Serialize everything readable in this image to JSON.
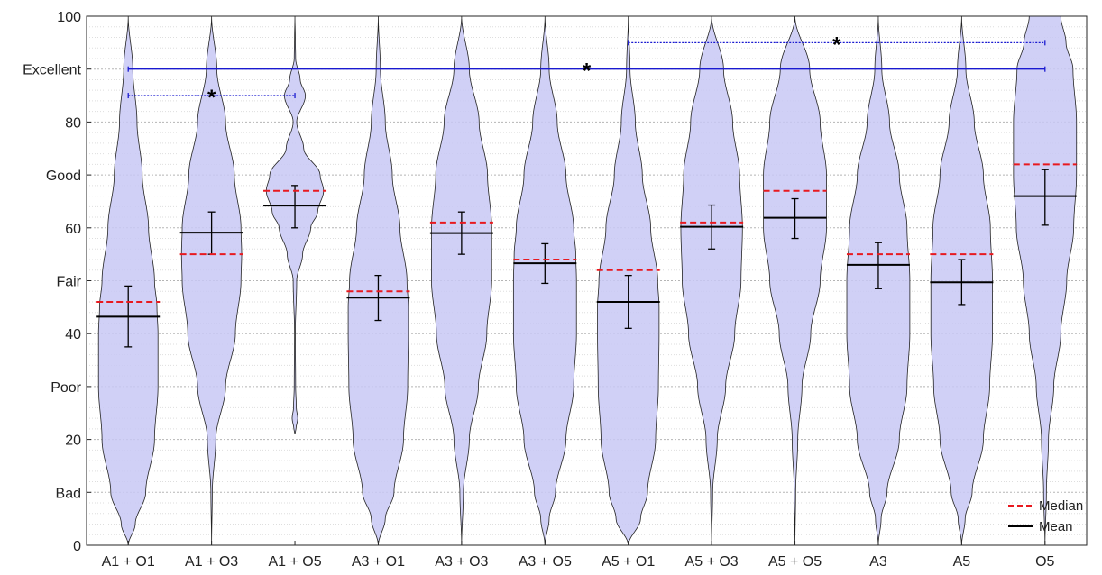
{
  "chart_data": {
    "type": "violin",
    "categories": [
      "A1 + O1",
      "A1 + O3",
      "A1 + O5",
      "A3 + O1",
      "A3 + O3",
      "A3 + O5",
      "A5 + O1",
      "A5 + O3",
      "A5 + O5",
      "A3",
      "A5",
      "O5"
    ],
    "ylim": [
      0,
      100
    ],
    "y_ticks": [
      {
        "value": 0,
        "label": "0"
      },
      {
        "value": 10,
        "label": "Bad"
      },
      {
        "value": 20,
        "label": "20"
      },
      {
        "value": 30,
        "label": "Poor"
      },
      {
        "value": 40,
        "label": "40"
      },
      {
        "value": 50,
        "label": "Fair"
      },
      {
        "value": 60,
        "label": "60"
      },
      {
        "value": 70,
        "label": "Good"
      },
      {
        "value": 80,
        "label": "80"
      },
      {
        "value": 90,
        "label": "Excellent"
      },
      {
        "value": 100,
        "label": "100"
      }
    ],
    "grid": true,
    "minor_grid_step": 2,
    "legend_position": "bottom-right",
    "legend": [
      {
        "label": "Median",
        "style": "dashed",
        "color": "#e8191f"
      },
      {
        "label": "Mean",
        "style": "solid",
        "color": "#000000"
      }
    ],
    "violin_color": "#c8c8f5",
    "violin_edge_color": "#222222",
    "series": [
      {
        "category": "A1 + O1",
        "median": 46,
        "mean": 43.2,
        "ci": [
          37.5,
          49
        ],
        "profile_y": [
          0,
          4,
          10,
          20,
          30,
          40,
          45,
          50,
          60,
          70,
          80,
          90,
          100
        ],
        "profile_w": [
          0,
          0.2,
          0.5,
          0.75,
          0.85,
          0.85,
          0.82,
          0.75,
          0.58,
          0.4,
          0.25,
          0.13,
          0
        ]
      },
      {
        "category": "A1 + O3",
        "median": 55,
        "mean": 59.1,
        "ci": [
          55,
          63
        ],
        "profile_y": [
          0,
          10,
          20,
          30,
          40,
          50,
          55,
          60,
          70,
          80,
          90,
          100
        ],
        "profile_w": [
          0,
          0.02,
          0.12,
          0.4,
          0.68,
          0.84,
          0.86,
          0.84,
          0.65,
          0.4,
          0.15,
          0
        ]
      },
      {
        "category": "A1 + O5",
        "median": 67,
        "mean": 64.2,
        "ci": [
          60,
          68
        ],
        "profile_y": [
          21,
          22,
          24,
          26,
          30,
          40,
          50,
          55,
          60,
          63,
          67,
          70,
          75,
          80,
          85,
          88,
          92,
          96,
          100
        ],
        "profile_w": [
          0,
          0.03,
          0.08,
          0.04,
          0.02,
          0.01,
          0.05,
          0.22,
          0.45,
          0.65,
          0.82,
          0.72,
          0.25,
          0.05,
          0.3,
          0.15,
          0.02,
          0.01,
          0
        ]
      },
      {
        "category": "A3 + O1",
        "median": 48,
        "mean": 46.8,
        "ci": [
          42.5,
          51
        ],
        "profile_y": [
          0,
          5,
          10,
          20,
          30,
          40,
          45,
          50,
          60,
          70,
          80,
          90,
          100
        ],
        "profile_w": [
          0,
          0.2,
          0.45,
          0.72,
          0.84,
          0.86,
          0.86,
          0.82,
          0.62,
          0.4,
          0.2,
          0.06,
          0
        ]
      },
      {
        "category": "A3 + O3",
        "median": 61,
        "mean": 59,
        "ci": [
          55,
          63
        ],
        "profile_y": [
          0,
          10,
          20,
          30,
          40,
          50,
          60,
          70,
          80,
          90,
          100
        ],
        "profile_w": [
          0,
          0.05,
          0.22,
          0.48,
          0.72,
          0.86,
          0.86,
          0.74,
          0.5,
          0.22,
          0
        ]
      },
      {
        "category": "A3 + O5",
        "median": 54,
        "mean": 53.3,
        "ci": [
          49.5,
          57
        ],
        "profile_y": [
          0,
          5,
          10,
          20,
          30,
          40,
          50,
          55,
          60,
          70,
          80,
          90,
          100
        ],
        "profile_w": [
          0,
          0.12,
          0.3,
          0.6,
          0.82,
          0.9,
          0.9,
          0.88,
          0.82,
          0.6,
          0.35,
          0.12,
          0
        ]
      },
      {
        "category": "A5 + O1",
        "median": 52,
        "mean": 46,
        "ci": [
          41,
          51
        ],
        "profile_y": [
          0,
          5,
          10,
          20,
          30,
          40,
          45,
          50,
          60,
          70,
          80,
          90,
          100
        ],
        "profile_w": [
          0,
          0.35,
          0.55,
          0.78,
          0.86,
          0.88,
          0.88,
          0.84,
          0.64,
          0.4,
          0.2,
          0.05,
          0
        ]
      },
      {
        "category": "A5 + O3",
        "median": 61,
        "mean": 60.2,
        "ci": [
          56,
          64.3
        ],
        "profile_y": [
          0,
          10,
          20,
          30,
          40,
          50,
          60,
          70,
          80,
          90,
          100
        ],
        "profile_w": [
          0,
          0.03,
          0.16,
          0.4,
          0.66,
          0.84,
          0.88,
          0.8,
          0.6,
          0.34,
          0
        ]
      },
      {
        "category": "A5 + O5",
        "median": 67,
        "mean": 61.9,
        "ci": [
          58,
          65.5
        ],
        "profile_y": [
          0,
          10,
          20,
          30,
          40,
          50,
          60,
          70,
          80,
          90,
          100
        ],
        "profile_w": [
          0,
          0.02,
          0.08,
          0.2,
          0.45,
          0.72,
          0.9,
          0.9,
          0.72,
          0.42,
          0
        ]
      },
      {
        "category": "A3",
        "median": 55,
        "mean": 53,
        "ci": [
          48.5,
          57.2
        ],
        "profile_y": [
          0,
          5,
          10,
          20,
          30,
          40,
          50,
          60,
          70,
          80,
          90,
          100
        ],
        "profile_w": [
          0,
          0.08,
          0.25,
          0.6,
          0.82,
          0.9,
          0.9,
          0.82,
          0.6,
          0.32,
          0.1,
          0
        ]
      },
      {
        "category": "A5",
        "median": 55,
        "mean": 49.7,
        "ci": [
          45.5,
          54
        ],
        "profile_y": [
          0,
          5,
          10,
          20,
          30,
          40,
          50,
          60,
          70,
          80,
          90,
          100
        ],
        "profile_w": [
          0,
          0.1,
          0.3,
          0.62,
          0.8,
          0.88,
          0.88,
          0.82,
          0.62,
          0.36,
          0.12,
          0
        ]
      },
      {
        "category": "O5",
        "median": 72,
        "mean": 66,
        "ci": [
          60.5,
          71
        ],
        "profile_y": [
          0,
          10,
          20,
          30,
          40,
          50,
          60,
          70,
          80,
          90,
          95,
          100
        ],
        "profile_w": [
          0,
          0.04,
          0.1,
          0.25,
          0.45,
          0.62,
          0.82,
          0.9,
          0.9,
          0.8,
          0.6,
          0.45
        ]
      }
    ],
    "significance": [
      {
        "from": "A1 + O1",
        "to": "A1 + O5",
        "y": 85,
        "label": "*"
      },
      {
        "from": "A1 + O1",
        "to": "O5",
        "y": 90,
        "label": "*"
      },
      {
        "from": "A5 + O1",
        "to": "O5",
        "y": 95,
        "label": "*"
      }
    ]
  }
}
